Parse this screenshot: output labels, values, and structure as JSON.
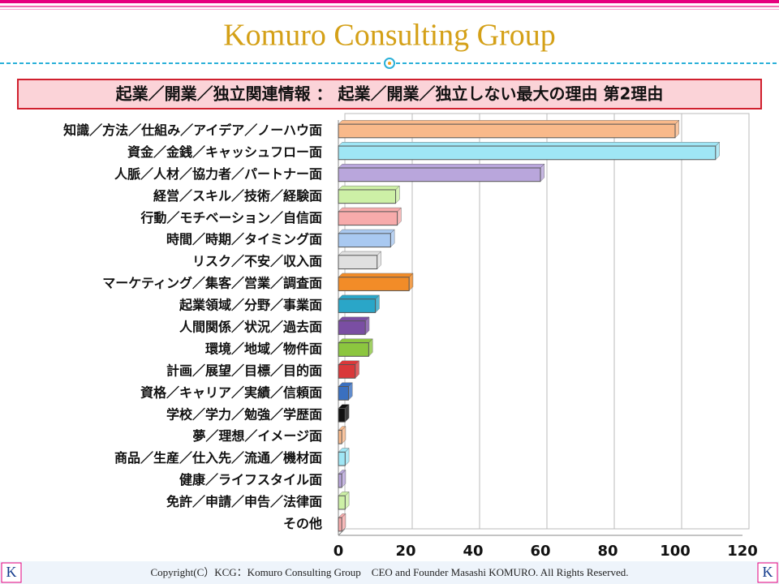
{
  "header": {
    "brand": "Komuro Consulting Group"
  },
  "chart_data": {
    "type": "hbar",
    "title": "起業／開業／独立関連情報 ： 起業／開業／独立しない最大の理由 第2理由",
    "categories": [
      "知識／方法／仕組み／アイデア／ノーハウ面",
      "資金／金銭／キャッシュフロー面",
      "人脈／人材／協力者／パートナー面",
      "経営／スキル／技術／経験面",
      "行動／モチベーション／自信面",
      "時間／時期／タイミング面",
      "リスク／不安／収入面",
      "マーケティング／集客／営業／調査面",
      "起業領域／分野／事業面",
      "人間関係／状況／過去面",
      "環境／地域／物件面",
      "計画／展望／目標／目的面",
      "資格／キャリア／実績／信頼面",
      "学校／学力／勉強／学歴面",
      "夢／理想／イメージ面",
      "商品／生産／仕入先／流通／機材面",
      "健康／ライフスタイル面",
      "免許／申請／申告／法律面",
      "その他"
    ],
    "values": [
      100,
      112,
      60,
      17,
      17.5,
      15.5,
      11.5,
      21,
      11,
      8,
      9,
      5,
      3,
      2,
      1,
      2,
      1,
      2,
      1
    ],
    "colors": [
      "#f9b98a",
      "#9fe6f5",
      "#b9a6dc",
      "#cdf0a6",
      "#f7abab",
      "#a9c9f1",
      "#e0e0e0",
      "#f28c28",
      "#2aa6c8",
      "#7a4ea3",
      "#8cc63f",
      "#d9383a",
      "#3a70c0",
      "#111111",
      "#f9b98a",
      "#9fe6f5",
      "#b9a6dc",
      "#cdf0a6",
      "#f7abab"
    ],
    "xlim": [
      0,
      120
    ],
    "xticks": [
      0,
      20,
      40,
      60,
      80,
      100,
      120
    ],
    "grid": true
  },
  "footer": {
    "copyright": "Copyright(C）KCG：Komuro Consulting Group　CEO and Founder  Masashi KOMURO. All Rights Reserved.",
    "logo": "K"
  }
}
